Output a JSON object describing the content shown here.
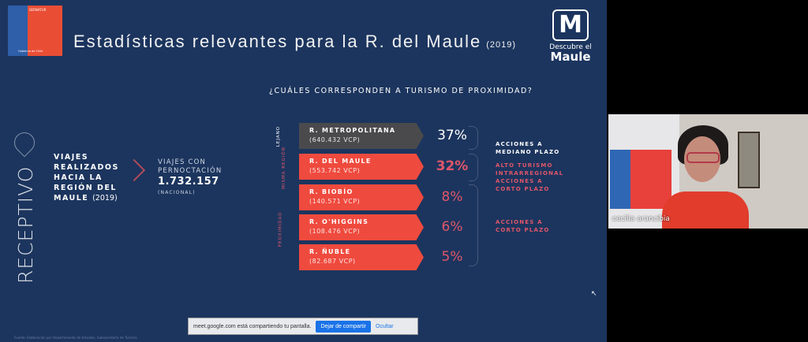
{
  "slide": {
    "logo": {
      "brand": "SERNATUR",
      "sub": "Ministerio de Economía, Fomento y Turismo",
      "footer": "Gobierno de Chile"
    },
    "title": "Estadísticas relevantes para la R. del Maule",
    "year": "(2019)",
    "maule_logo": {
      "line1": "Descubre el",
      "line2": "Maule"
    },
    "question": "¿CUÁLES CORRESPONDEN A TURISMO DE PROXIMIDAD?",
    "side_label": "RECEPTIVO",
    "viajes": {
      "text": "VIAJES REALIZADOS HACIA LA REGIÓN DEL MAULE",
      "year": "(2019)"
    },
    "pernoctacion": {
      "label1": "VIAJES CON",
      "label2": "PERNOCTACIÓN",
      "value": "1.732.157",
      "scope": "(NACIONAL)"
    },
    "groups": {
      "lejano": "LEJANO",
      "misma": "MISMA REGIÓN",
      "proximidad": "PROXIMIDAD"
    },
    "regions": [
      {
        "name": "R. METROPOLITANA",
        "vcp": "(640.432 VCP)",
        "pct": "37%",
        "color": "#4a4a4c"
      },
      {
        "name": "R. DEL MAULE",
        "vcp": "(553.742 VCP)",
        "pct": "32%",
        "color": "#ef4a3e"
      },
      {
        "name": "R. BIOBÍO",
        "vcp": "(140.571 VCP)",
        "pct": "8%",
        "color": "#ef4a3e"
      },
      {
        "name": "R. O'HIGGINS",
        "vcp": "(108.476 VCP)",
        "pct": "6%",
        "color": "#ef4a3e"
      },
      {
        "name": "R. ÑUBLE",
        "vcp": "(82.687 VCP)",
        "pct": "5%",
        "color": "#ef4a3e"
      }
    ],
    "notes": {
      "n1a": "ACCIONES A",
      "n1b": "MEDIANO PLAZO",
      "n2a": "ALTO TURISMO",
      "n2b": "INTRARREGIONAL",
      "n2c": "ACCIONES A",
      "n2d": "CORTO PLAZO",
      "n3a": "ACCIONES A",
      "n3b": "CORTO PLAZO"
    },
    "footnote": "Fuente: Elaboración por Departamento de Estudios, Subsecretaría de Turismo"
  },
  "share_bar": {
    "message": "meet.google.com está compartiendo tu pantalla.",
    "stop": "Dejar de compartir",
    "hide": "Ocultar"
  },
  "participant": {
    "name": "cecilia arancibia"
  }
}
